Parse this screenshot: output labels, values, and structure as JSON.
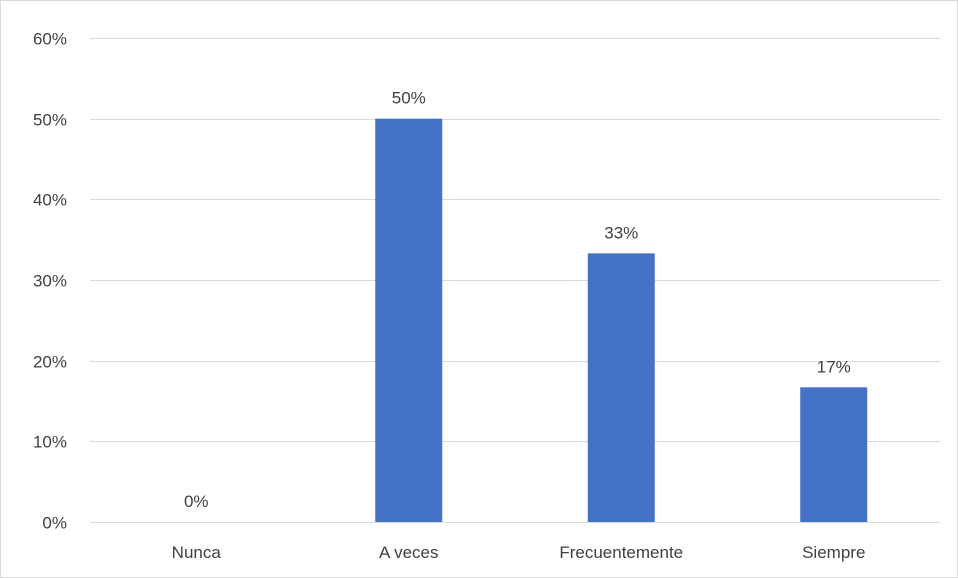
{
  "chart_data": {
    "type": "bar",
    "categories": [
      "Nunca",
      "A veces",
      "Frecuentemente",
      "Siempre"
    ],
    "values": [
      0,
      0.5,
      0.333,
      0.167
    ],
    "data_labels": [
      "0%",
      "50%",
      "33%",
      "17%"
    ],
    "y_ticks": [
      {
        "value": 0,
        "label": "0%"
      },
      {
        "value": 0.1,
        "label": "10%"
      },
      {
        "value": 0.2,
        "label": "20%"
      },
      {
        "value": 0.3,
        "label": "30%"
      },
      {
        "value": 0.4,
        "label": "40%"
      },
      {
        "value": 0.5,
        "label": "50%"
      },
      {
        "value": 0.6,
        "label": "60%"
      }
    ],
    "ylim": [
      0,
      0.6
    ],
    "grid": true,
    "legend": "none",
    "bar_color": "#4472C4",
    "grid_color": "#d9d9d9",
    "text_color": "#404040"
  }
}
